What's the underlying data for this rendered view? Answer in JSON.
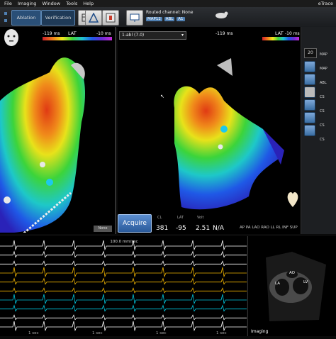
{
  "menu": [
    "File",
    "Imaging",
    "Window",
    "Tools",
    "Help"
  ],
  "app_title": "eTrace",
  "toolbar": {
    "tabs": [
      "Ablation",
      "Verification"
    ],
    "channel_label": "Routed channel: None",
    "channel_pills": [
      "MAP12",
      "ABL",
      "A1"
    ]
  },
  "left_view": {
    "range_min": "-119 ms",
    "range_max": "-10 ms",
    "map_type": "LAT",
    "mini_label": "None"
  },
  "right_view": {
    "map_selector": "1-abl (7.0)",
    "range_min": "-119 ms",
    "range_max": "-10 ms",
    "map_type": "LAT"
  },
  "acquire_label": "Acquire",
  "readout": {
    "headers": [
      "CL",
      "LAT",
      "Volt"
    ],
    "values": [
      "381",
      "-95",
      "2.51",
      "N/A"
    ],
    "view_buttons": [
      "AP",
      "PA",
      "LAO",
      "RAO",
      "LL",
      "RL",
      "INF",
      "SUP"
    ]
  },
  "ecg": {
    "header": "100.0 mm/sec",
    "time_labels": [
      "1 sec",
      "1 sec",
      "1 sec",
      "1 sec"
    ],
    "colors": [
      "#ffffff",
      "#ffffff",
      "#ffffff",
      "#f0b400",
      "#f0b400",
      "#f0b400",
      "#00c8e0",
      "#00c8e0",
      "#ffffff",
      "#ffffff"
    ]
  },
  "right_panel": {
    "zoom": "20",
    "labels": [
      "MAP",
      "MAP",
      "ABL",
      "CS",
      "CS",
      "CS",
      "CS"
    ]
  },
  "echo": {
    "labels": [
      "AO",
      "LA",
      "LV"
    ],
    "footer": "Imaging"
  }
}
